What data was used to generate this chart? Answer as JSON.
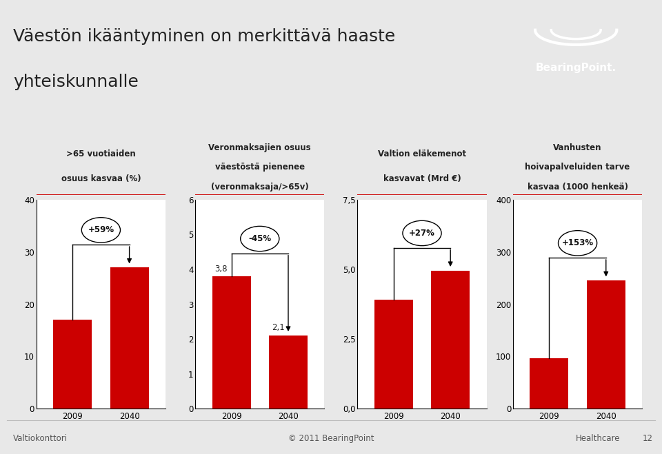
{
  "title_line1": "Väestön ikääntyminen on merkittävä haaste",
  "title_line2": "yhteiskunnalle",
  "bg_color": "#e8e8e8",
  "content_bg": "#ffffff",
  "bar_color": "#cc0000",
  "charts": [
    {
      "subtitle_lines": [
        ">65 vuotiaiden",
        "osuus kasvaa (%)"
      ],
      "values": [
        17,
        27
      ],
      "labels": [
        "2009",
        "2040"
      ],
      "ylim": [
        0,
        40
      ],
      "yticks": [
        0,
        10,
        20,
        30,
        40
      ],
      "ytick_labels": [
        "0",
        "10",
        "20",
        "30",
        "40"
      ],
      "arrow_label": "+59%",
      "bar_labels": [
        "",
        ""
      ]
    },
    {
      "subtitle_lines": [
        "Veronmaksajien osuus",
        "väestöstä pienenee",
        "(veronmaksaja/>65v)"
      ],
      "values": [
        3.8,
        2.1
      ],
      "labels": [
        "2009",
        "2040"
      ],
      "ylim": [
        0,
        6
      ],
      "yticks": [
        0,
        1,
        2,
        3,
        4,
        5,
        6
      ],
      "ytick_labels": [
        "0",
        "1",
        "2",
        "3",
        "4",
        "5",
        "6"
      ],
      "arrow_label": "-45%",
      "bar_labels": [
        "3,8",
        "2,1"
      ]
    },
    {
      "subtitle_lines": [
        "Valtion eläkemenot",
        "kasvavat (Mrd €)"
      ],
      "values": [
        3.9,
        4.95
      ],
      "labels": [
        "2009",
        "2040"
      ],
      "ylim": [
        0,
        7.5
      ],
      "yticks": [
        0.0,
        2.5,
        5.0,
        7.5
      ],
      "ytick_labels": [
        "0,0",
        "2,5",
        "5,0",
        "7,5"
      ],
      "arrow_label": "+27%",
      "bar_labels": [
        "",
        ""
      ]
    },
    {
      "subtitle_lines": [
        "Vanhusten",
        "hoivapalveluiden tarve",
        "kasvaa (1000 henkeä)"
      ],
      "values": [
        97,
        245
      ],
      "labels": [
        "2009",
        "2040"
      ],
      "ylim": [
        0,
        400
      ],
      "yticks": [
        0,
        100,
        200,
        300,
        400
      ],
      "ytick_labels": [
        "0",
        "100",
        "200",
        "300",
        "400"
      ],
      "arrow_label": "+153%",
      "bar_labels": [
        "",
        ""
      ]
    }
  ],
  "footer_left": "Valtiokonttori",
  "footer_center": "© 2011 BearingPoint",
  "footer_right": "Healthcare",
  "footer_page": "12"
}
